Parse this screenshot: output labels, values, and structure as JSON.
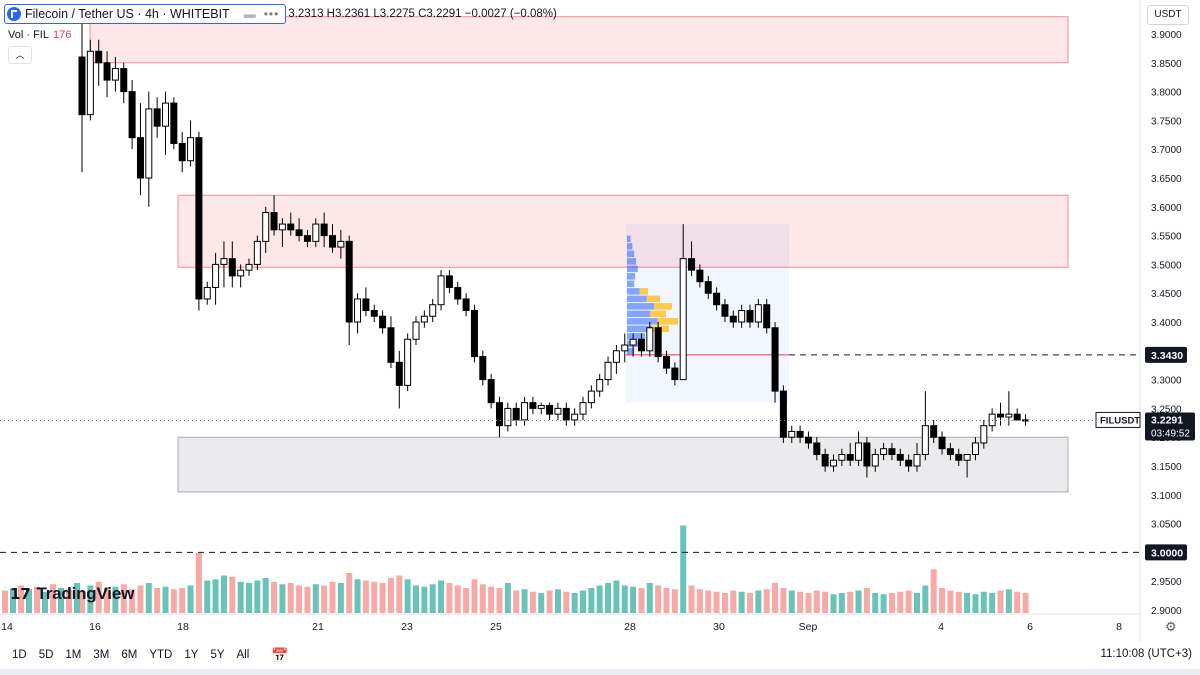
{
  "header": {
    "title": "Filecoin / Tether US · 4h · WHITEBIT",
    "ohlc": "3.2313  H3.2361  L3.2275  C3.2291  −0.0027 (−0.08%)",
    "more": "•••"
  },
  "volume": {
    "label": "Vol · FIL",
    "value": "176"
  },
  "currency": "USDT",
  "logo_text": "TradingView",
  "price_axis": [
    "3.9000",
    "3.8500",
    "3.8000",
    "3.7500",
    "3.7000",
    "3.6500",
    "3.6000",
    "3.5500",
    "3.5000",
    "3.4500",
    "3.4000",
    "3.3500",
    "3.3000",
    "3.2500",
    "3.2000",
    "3.1500",
    "3.1000",
    "3.0500",
    "3.0000",
    "2.9500",
    "2.9000"
  ],
  "price_labels": {
    "level_high": "3.3430",
    "level_low": "3.0000",
    "current_symbol": "FILUSDT",
    "current_price": "3.2291",
    "countdown": "03:49:52"
  },
  "time_axis": [
    "14",
    "16",
    "18",
    "21",
    "23",
    "25",
    "28",
    "30",
    "Sep",
    "4",
    "6",
    "8"
  ],
  "range_buttons": [
    "1D",
    "5D",
    "1M",
    "3M",
    "6M",
    "YTD",
    "1Y",
    "5Y",
    "All"
  ],
  "clock": "11:10:08 (UTC+3)",
  "colors": {
    "up": "#089981",
    "down": "#000000",
    "zone_red": "#f23645",
    "zone_grey": "#787b86",
    "accent": "#2962ff",
    "vol_up": "#6ac3b7",
    "vol_down": "#f7a9a7"
  },
  "chart_data": {
    "type": "candlestick",
    "symbol": "FILUSDT",
    "timeframe": "4h",
    "x_ticks": [
      "14",
      "16",
      "18",
      "21",
      "23",
      "25",
      "28",
      "30",
      "Sep",
      "4",
      "6",
      "8"
    ],
    "ylim": [
      2.9,
      3.93
    ],
    "zones": [
      {
        "type": "resistance",
        "from": 3.85,
        "to": 3.93
      },
      {
        "type": "resistance",
        "from": 3.495,
        "to": 3.62
      },
      {
        "type": "support",
        "from": 3.105,
        "to": 3.2
      }
    ],
    "levels": [
      3.343,
      3.0
    ],
    "last_price": 3.2291,
    "candles": [
      [
        3.86,
        3.93,
        3.66,
        3.76
      ],
      [
        3.76,
        3.89,
        3.75,
        3.87
      ],
      [
        3.87,
        3.89,
        3.81,
        3.85
      ],
      [
        3.85,
        3.87,
        3.79,
        3.82
      ],
      [
        3.82,
        3.86,
        3.8,
        3.84
      ],
      [
        3.84,
        3.85,
        3.78,
        3.8
      ],
      [
        3.8,
        3.82,
        3.7,
        3.72
      ],
      [
        3.72,
        3.78,
        3.62,
        3.65
      ],
      [
        3.65,
        3.8,
        3.6,
        3.77
      ],
      [
        3.77,
        3.79,
        3.72,
        3.74
      ],
      [
        3.74,
        3.8,
        3.69,
        3.78
      ],
      [
        3.78,
        3.79,
        3.7,
        3.71
      ],
      [
        3.71,
        3.73,
        3.66,
        3.68
      ],
      [
        3.68,
        3.75,
        3.67,
        3.72
      ],
      [
        3.72,
        3.73,
        3.42,
        3.44
      ],
      [
        3.44,
        3.47,
        3.43,
        3.46
      ],
      [
        3.46,
        3.52,
        3.43,
        3.5
      ],
      [
        3.5,
        3.54,
        3.46,
        3.51
      ],
      [
        3.51,
        3.54,
        3.46,
        3.48
      ],
      [
        3.48,
        3.5,
        3.46,
        3.49
      ],
      [
        3.49,
        3.51,
        3.48,
        3.5
      ],
      [
        3.5,
        3.55,
        3.49,
        3.54
      ],
      [
        3.54,
        3.6,
        3.52,
        3.59
      ],
      [
        3.59,
        3.62,
        3.55,
        3.56
      ],
      [
        3.56,
        3.58,
        3.53,
        3.57
      ],
      [
        3.57,
        3.59,
        3.55,
        3.56
      ],
      [
        3.56,
        3.58,
        3.54,
        3.55
      ],
      [
        3.55,
        3.56,
        3.53,
        3.54
      ],
      [
        3.54,
        3.58,
        3.53,
        3.57
      ],
      [
        3.57,
        3.59,
        3.53,
        3.55
      ],
      [
        3.55,
        3.57,
        3.52,
        3.53
      ],
      [
        3.53,
        3.56,
        3.51,
        3.54
      ],
      [
        3.54,
        3.55,
        3.36,
        3.4
      ],
      [
        3.4,
        3.45,
        3.38,
        3.44
      ],
      [
        3.44,
        3.46,
        3.41,
        3.42
      ],
      [
        3.42,
        3.43,
        3.4,
        3.41
      ],
      [
        3.41,
        3.42,
        3.38,
        3.39
      ],
      [
        3.39,
        3.41,
        3.32,
        3.33
      ],
      [
        3.33,
        3.35,
        3.25,
        3.29
      ],
      [
        3.29,
        3.38,
        3.28,
        3.37
      ],
      [
        3.37,
        3.41,
        3.36,
        3.4
      ],
      [
        3.4,
        3.42,
        3.39,
        3.41
      ],
      [
        3.41,
        3.44,
        3.4,
        3.43
      ],
      [
        3.43,
        3.49,
        3.42,
        3.48
      ],
      [
        3.48,
        3.49,
        3.45,
        3.46
      ],
      [
        3.46,
        3.47,
        3.43,
        3.44
      ],
      [
        3.44,
        3.45,
        3.41,
        3.42
      ],
      [
        3.42,
        3.43,
        3.33,
        3.34
      ],
      [
        3.34,
        3.35,
        3.29,
        3.3
      ],
      [
        3.3,
        3.31,
        3.25,
        3.26
      ],
      [
        3.26,
        3.27,
        3.2,
        3.22
      ],
      [
        3.22,
        3.26,
        3.21,
        3.25
      ],
      [
        3.25,
        3.26,
        3.22,
        3.23
      ],
      [
        3.23,
        3.27,
        3.22,
        3.26
      ],
      [
        3.26,
        3.27,
        3.24,
        3.25
      ],
      [
        3.25,
        3.26,
        3.24,
        3.255
      ],
      [
        3.255,
        3.26,
        3.23,
        3.24
      ],
      [
        3.24,
        3.26,
        3.23,
        3.25
      ],
      [
        3.25,
        3.26,
        3.22,
        3.23
      ],
      [
        3.23,
        3.25,
        3.22,
        3.24
      ],
      [
        3.24,
        3.27,
        3.23,
        3.26
      ],
      [
        3.26,
        3.29,
        3.25,
        3.28
      ],
      [
        3.28,
        3.31,
        3.27,
        3.3
      ],
      [
        3.3,
        3.34,
        3.29,
        3.33
      ],
      [
        3.33,
        3.36,
        3.31,
        3.35
      ],
      [
        3.35,
        3.38,
        3.33,
        3.36
      ],
      [
        3.36,
        3.38,
        3.34,
        3.37
      ],
      [
        3.37,
        3.38,
        3.34,
        3.35
      ],
      [
        3.35,
        3.4,
        3.34,
        3.39
      ],
      [
        3.39,
        3.4,
        3.33,
        3.34
      ],
      [
        3.34,
        3.35,
        3.31,
        3.32
      ],
      [
        3.32,
        3.33,
        3.29,
        3.3
      ],
      [
        3.3,
        3.57,
        3.3,
        3.51
      ],
      [
        3.51,
        3.54,
        3.48,
        3.49
      ],
      [
        3.49,
        3.5,
        3.46,
        3.47
      ],
      [
        3.47,
        3.48,
        3.44,
        3.45
      ],
      [
        3.45,
        3.46,
        3.42,
        3.43
      ],
      [
        3.43,
        3.44,
        3.4,
        3.41
      ],
      [
        3.41,
        3.42,
        3.39,
        3.4
      ],
      [
        3.4,
        3.43,
        3.39,
        3.42
      ],
      [
        3.42,
        3.43,
        3.39,
        3.4
      ],
      [
        3.4,
        3.44,
        3.39,
        3.43
      ],
      [
        3.43,
        3.44,
        3.38,
        3.39
      ],
      [
        3.39,
        3.4,
        3.26,
        3.28
      ],
      [
        3.28,
        3.29,
        3.19,
        3.2
      ],
      [
        3.2,
        3.22,
        3.19,
        3.21
      ],
      [
        3.21,
        3.22,
        3.19,
        3.2
      ],
      [
        3.2,
        3.21,
        3.18,
        3.19
      ],
      [
        3.19,
        3.2,
        3.16,
        3.17
      ],
      [
        3.17,
        3.18,
        3.14,
        3.15
      ],
      [
        3.15,
        3.17,
        3.14,
        3.16
      ],
      [
        3.16,
        3.18,
        3.15,
        3.17
      ],
      [
        3.17,
        3.19,
        3.15,
        3.16
      ],
      [
        3.16,
        3.21,
        3.15,
        3.19
      ],
      [
        3.19,
        3.2,
        3.13,
        3.15
      ],
      [
        3.15,
        3.18,
        3.14,
        3.17
      ],
      [
        3.17,
        3.19,
        3.16,
        3.18
      ],
      [
        3.18,
        3.19,
        3.16,
        3.17
      ],
      [
        3.17,
        3.18,
        3.15,
        3.16
      ],
      [
        3.16,
        3.17,
        3.14,
        3.15
      ],
      [
        3.15,
        3.19,
        3.14,
        3.17
      ],
      [
        3.17,
        3.28,
        3.16,
        3.22
      ],
      [
        3.22,
        3.23,
        3.19,
        3.2
      ],
      [
        3.2,
        3.21,
        3.17,
        3.18
      ],
      [
        3.18,
        3.19,
        3.16,
        3.17
      ],
      [
        3.17,
        3.18,
        3.15,
        3.16
      ],
      [
        3.16,
        3.17,
        3.13,
        3.17
      ],
      [
        3.17,
        3.2,
        3.16,
        3.19
      ],
      [
        3.19,
        3.23,
        3.18,
        3.22
      ],
      [
        3.22,
        3.25,
        3.21,
        3.24
      ],
      [
        3.24,
        3.26,
        3.22,
        3.235
      ],
      [
        3.235,
        3.28,
        3.22,
        3.24
      ],
      [
        3.24,
        3.25,
        3.23,
        3.23
      ],
      [
        3.23,
        3.24,
        3.22,
        3.2291
      ]
    ],
    "volume": [
      18,
      22,
      25,
      20,
      21,
      23,
      19,
      22,
      24,
      20,
      21,
      19,
      20,
      22,
      48,
      26,
      27,
      30,
      29,
      25,
      24,
      26,
      28,
      25,
      23,
      24,
      22,
      21,
      23,
      22,
      25,
      24,
      32,
      27,
      26,
      25,
      24,
      28,
      30,
      27,
      22,
      21,
      23,
      26,
      24,
      22,
      20,
      27,
      23,
      21,
      20,
      24,
      18,
      19,
      17,
      16,
      18,
      19,
      17,
      16,
      18,
      20,
      22,
      24,
      26,
      22,
      21,
      20,
      24,
      22,
      20,
      19,
      70,
      22,
      19,
      18,
      17,
      16,
      18,
      17,
      16,
      18,
      19,
      24,
      20,
      18,
      17,
      16,
      18,
      17,
      15,
      16,
      17,
      18,
      20,
      16,
      15,
      16,
      17,
      18,
      16,
      22,
      35,
      20,
      18,
      17,
      16,
      15,
      17,
      16,
      18,
      19,
      17,
      16,
      15,
      12
    ]
  }
}
